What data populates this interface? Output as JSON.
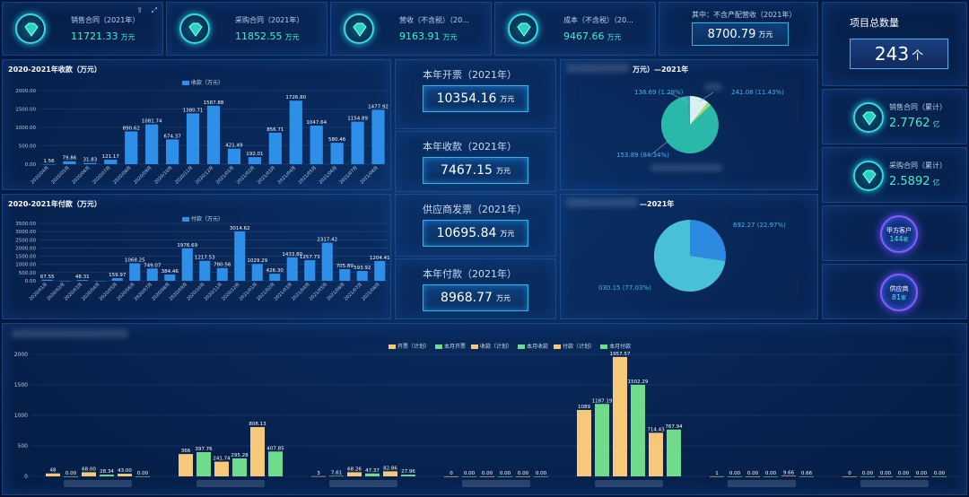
{
  "kpis": [
    {
      "label": "销售合同（2021年）",
      "value": "11721.33",
      "unit": "万元"
    },
    {
      "label": "采购合同（2021年）",
      "value": "11852.55",
      "unit": "万元"
    },
    {
      "label": "营收（不含税）（20...",
      "value": "9163.91",
      "unit": "万元"
    },
    {
      "label": "成本（不含税）（20...",
      "value": "9467.66",
      "unit": "万元"
    }
  ],
  "kpi5": {
    "label": "其中：不含产配营收（2021年）",
    "value": "8700.79",
    "unit": "万元"
  },
  "project": {
    "title": "项目总数量",
    "value": "243",
    "unit": "个"
  },
  "right_kpis": [
    {
      "label": "销售合同（累计）",
      "value": "2.7762",
      "unit": "亿"
    },
    {
      "label": "采购合同（累计）",
      "value": "2.5892",
      "unit": "亿"
    }
  ],
  "circles": [
    {
      "label": "甲方客户",
      "value": "144",
      "unit": "家"
    },
    {
      "label": "供应商",
      "value": "81",
      "unit": "家"
    }
  ],
  "mid": [
    {
      "title": "本年开票（2021年）",
      "value": "10354.16",
      "unit": "万元"
    },
    {
      "title": "本年收款（2021年）",
      "value": "7467.15",
      "unit": "万元"
    },
    {
      "title": "供应商发票（2021年）",
      "value": "10695.84",
      "unit": "万元"
    },
    {
      "title": "本年付款（2021年）",
      "value": "8968.77",
      "unit": "万元"
    }
  ],
  "pie1": {
    "title": "万元）—2021年",
    "labels": [
      "138.69 (1.28%)",
      "241.08 (11.43%)",
      "153.89 (84.34%)"
    ],
    "colors": [
      "#4a8fe0",
      "#a8d86a",
      "#2ab8a8"
    ]
  },
  "pie2": {
    "title": "—2021年",
    "labels": [
      "692.27 (22.97%)",
      "030.15 (77.03%)"
    ],
    "colors": [
      "#2e8ae0",
      "#47c0d8"
    ]
  },
  "chart_data": [
    {
      "type": "bar",
      "title": "2020-2021年收款（万元）",
      "legend": "收款（万元）",
      "ylim": [
        0,
        2000
      ],
      "yticks": [
        "0.00",
        "500.00",
        "1000.00",
        "1500.00",
        "2000.00"
      ],
      "categories": [
        "2020/04月",
        "2020/05月",
        "2020/06月",
        "2020/07月",
        "2020/08月",
        "2020/09月",
        "2020/10月",
        "2020/11月",
        "2020/12月",
        "2021/01月",
        "2021/02月",
        "2021/03月",
        "2021/04月",
        "2021/05月",
        "2021/06月",
        "2021/07月",
        "2021/08月"
      ],
      "values": [
        1.56,
        79.86,
        31.83,
        121.17,
        890.62,
        1081.74,
        674.37,
        1380.71,
        1587.88,
        421.49,
        192.01,
        856.71,
        1726.8,
        1047.64,
        580.46,
        1154.89,
        1477.92
      ],
      "labels": [
        "1.56",
        "79.86",
        "31.83",
        "121.17",
        "890.62",
        "1081.74",
        "674.37",
        "1380.71",
        "1587.88",
        "421.49",
        "192.01",
        "856.71",
        "1726.80",
        "1047.64",
        "580.46",
        "1154.89",
        "1477.92"
      ]
    },
    {
      "type": "bar",
      "title": "2020-2021年付款（万元）",
      "legend": "付款（万元）",
      "ylim": [
        0,
        3500
      ],
      "yticks": [
        "0.00",
        "500.00",
        "1000.00",
        "1500.00",
        "2000.00",
        "2500.00",
        "3000.00",
        "3500.00"
      ],
      "categories": [
        "2020/01月",
        "2020/02月",
        "2020/03月",
        "2020/04月",
        "2020/05月",
        "2020/06月",
        "2020/07月",
        "2020/08月",
        "2020/09月",
        "2020/10月",
        "2020/11月",
        "2020/12月",
        "2021/01月",
        "2021/02月",
        "2021/03月",
        "2021/04月",
        "2021/05月",
        "2021/06月",
        "2021/07月",
        "2021/08月"
      ],
      "values": [
        67.55,
        0,
        48.31,
        0,
        159.97,
        1068.25,
        749.07,
        384.46,
        1976.69,
        1217.53,
        780.56,
        3014.62,
        1029.29,
        426.3,
        1433.8,
        1257.73,
        2317.42,
        705.89,
        593.92,
        1204.41
      ],
      "labels": [
        "67.55",
        "",
        "48.31",
        "",
        "159.97",
        "1068.25",
        "749.07",
        "384.46",
        "1976.69",
        "1217.53",
        "780.56",
        "3014.62",
        "1029.29",
        "426.30",
        "1433.80",
        "1257.73",
        "2317.42",
        "705.89",
        "593.92",
        "1204.41"
      ]
    },
    {
      "type": "bar",
      "legend": [
        "开票（计划）",
        "本月开票",
        "收款（计划）",
        "本月收款",
        "付款（计划）",
        "本月付款"
      ],
      "ylim": [
        0,
        2000
      ],
      "yticks": [
        "0",
        "500",
        "1000",
        "1500",
        "2000"
      ],
      "groups": [
        {
          "values": [
            48,
            0,
            68,
            28.34,
            43,
            0
          ],
          "labels": [
            "48",
            "0.00",
            "68.00",
            "28.34",
            "43.00",
            "0.00"
          ]
        },
        {
          "values": [
            366,
            397.76,
            241.74,
            295.28,
            808.13,
            407.85
          ],
          "labels": [
            "366",
            "397.76",
            "241.74",
            "295.28",
            "808.13",
            "407.85"
          ]
        },
        {
          "values": [
            3,
            7.61,
            68.26,
            47.37,
            82.86,
            27.96
          ],
          "labels": [
            "3",
            "7.61",
            "68.26",
            "47.37",
            "82.86",
            "27.96"
          ]
        },
        {
          "values": [
            0,
            0,
            0,
            0,
            0,
            0
          ],
          "labels": [
            "0",
            "0.00",
            "0.00",
            "0.00",
            "0.00",
            "0.00"
          ]
        },
        {
          "values": [
            1089,
            1187.19,
            1957.57,
            1502.29,
            714.43,
            767.94
          ],
          "labels": [
            "1089",
            "1187.19",
            "1957.57",
            "1502.29",
            "714.43",
            "767.94"
          ]
        },
        {
          "values": [
            1,
            0,
            0,
            0,
            9.66,
            0.66
          ],
          "labels": [
            "1",
            "0.00",
            "0.00",
            "0.00",
            "9.66",
            "0.66"
          ]
        },
        {
          "values": [
            0,
            0,
            0,
            0,
            0,
            0
          ],
          "labels": [
            "0",
            "0.00",
            "0.00",
            "0.00",
            "0.00",
            "0.00"
          ]
        }
      ],
      "colors": [
        "#f5c979",
        "#6fdc8c",
        "#f5c979",
        "#6fdc8c",
        "#f5c979",
        "#6fdc8c"
      ]
    }
  ],
  "colors": {
    "bar": "#2e8fe8",
    "accent": "#3ff0c8"
  }
}
